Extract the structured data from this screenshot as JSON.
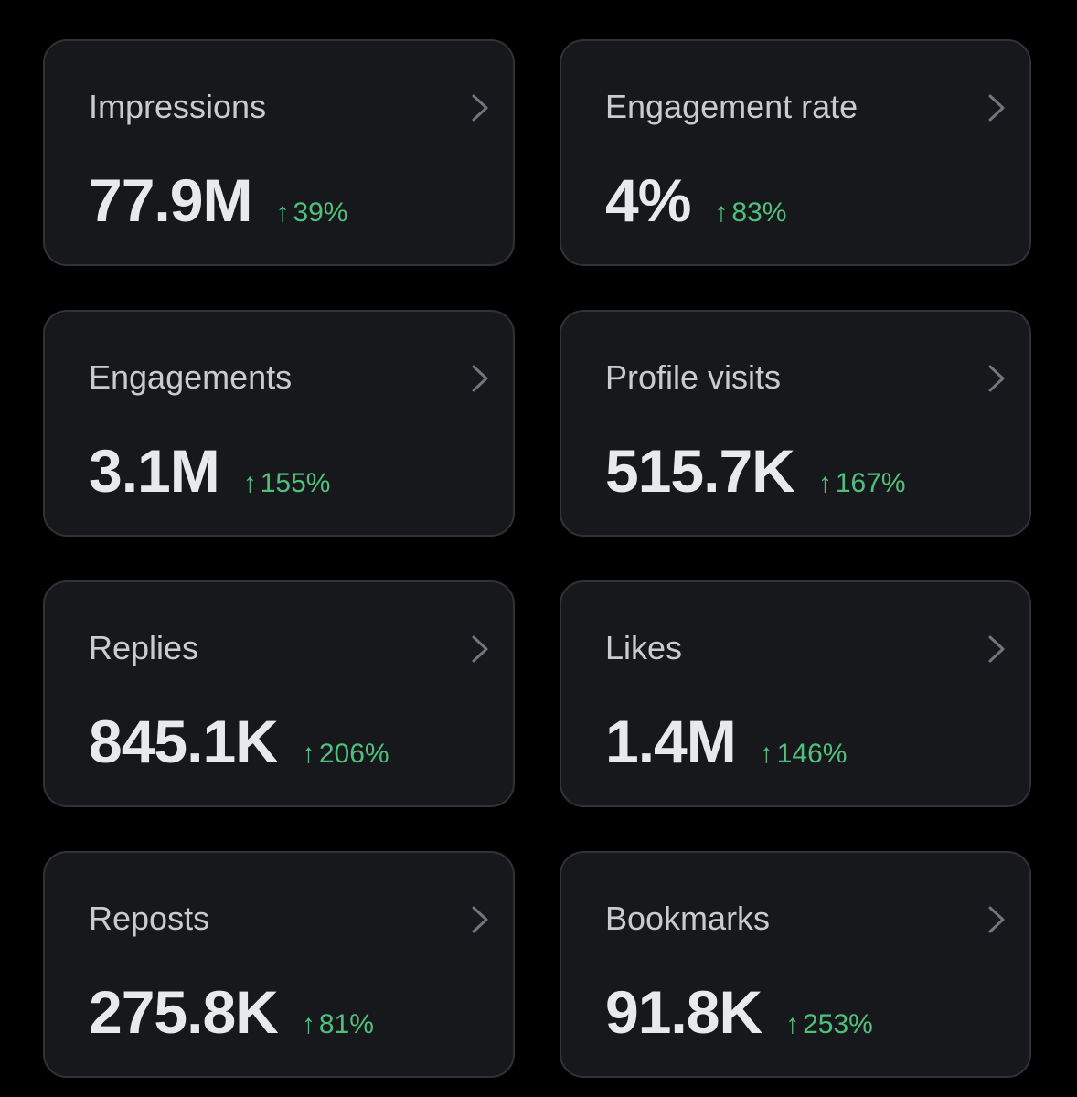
{
  "colors": {
    "background": "#000000",
    "card_background": "#16181c",
    "card_border": "#2f3336",
    "text_primary": "#e7e9ea",
    "positive_change": "#4fc07c",
    "chevron": "#71767b"
  },
  "icons": {
    "chevron": "chevron-right-icon",
    "trend": "arrow-up-icon"
  },
  "metrics": [
    {
      "label": "Impressions",
      "value": "77.9M",
      "change": "39%",
      "arrow": "↑"
    },
    {
      "label": "Engagement rate",
      "value": "4%",
      "change": "83%",
      "arrow": "↑"
    },
    {
      "label": "Engagements",
      "value": "3.1M",
      "change": "155%",
      "arrow": "↑"
    },
    {
      "label": "Profile visits",
      "value": "515.7K",
      "change": "167%",
      "arrow": "↑"
    },
    {
      "label": "Replies",
      "value": "845.1K",
      "change": "206%",
      "arrow": "↑"
    },
    {
      "label": "Likes",
      "value": "1.4M",
      "change": "146%",
      "arrow": "↑"
    },
    {
      "label": "Reposts",
      "value": "275.8K",
      "change": "81%",
      "arrow": "↑"
    },
    {
      "label": "Bookmarks",
      "value": "91.8K",
      "change": "253%",
      "arrow": "↑"
    }
  ]
}
